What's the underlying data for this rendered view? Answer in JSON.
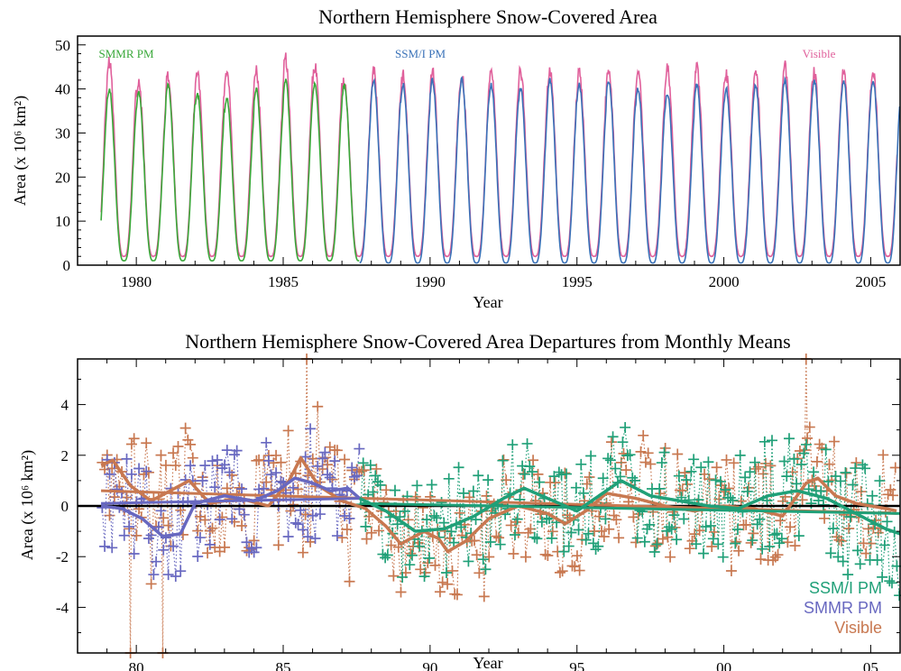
{
  "chart_data": [
    {
      "type": "line",
      "title": "Northern Hemisphere Snow-Covered Area",
      "xlabel": "Year",
      "ylabel": "Area (x 10⁶ km²)",
      "xlim": [
        1978,
        2006
      ],
      "ylim": [
        0,
        52
      ],
      "x_ticks": [
        1980,
        1985,
        1990,
        1995,
        2000,
        2005
      ],
      "y_ticks": [
        0,
        10,
        20,
        30,
        40,
        50
      ],
      "grid": false,
      "legend_placement": "top, inline above series",
      "series": [
        {
          "name": "SMMR PM",
          "color": "#3aa83a",
          "start": 1978.8,
          "end": 1987.6,
          "annual_peak": [
            40,
            40,
            39,
            41,
            39,
            38,
            40,
            42,
            41,
            41
          ],
          "summer_min": 1
        },
        {
          "name": "SSM/I PM",
          "color": "#3a72b8",
          "start": 1987.6,
          "end": 2006.0,
          "annual_peak": [
            41,
            42,
            41,
            42,
            42,
            41,
            40,
            42,
            41,
            42,
            40,
            39,
            41,
            40,
            41,
            42,
            42,
            42,
            42
          ],
          "summer_min": 0.5
        },
        {
          "name": "Visible",
          "color": "#e0609b",
          "start": 1978.8,
          "end": 2005.9,
          "annual_peak": [
            45,
            46,
            41,
            43,
            44,
            44,
            44,
            47,
            45,
            42,
            44,
            43,
            44,
            43,
            44,
            44,
            44,
            44,
            44,
            44,
            45,
            45,
            43,
            44,
            45,
            44,
            44,
            44
          ],
          "summer_min": 2
        }
      ]
    },
    {
      "type": "line",
      "title": "Northern Hemisphere Snow-Covered Area Departures from Monthly Means",
      "xlabel": "Year",
      "ylabel": "Area (x 10⁶ km²)",
      "xlim": [
        1978,
        2006
      ],
      "ylim": [
        -5.8,
        5.8
      ],
      "x_ticks": [
        1980,
        1985,
        1990,
        1995,
        2000,
        2005
      ],
      "x_tick_labels": [
        "80",
        "85",
        "90",
        "95",
        "00",
        "05"
      ],
      "y_ticks": [
        -4,
        -2,
        0,
        2,
        4
      ],
      "grid": false,
      "zero_line": true,
      "legend_placement": "bottom-right",
      "series": [
        {
          "name": "SSM/I PM",
          "color": "#20a078",
          "start": 1987.6,
          "end": 2006.0,
          "smooth_keypoints": [
            [
              1987.6,
              0.3
            ],
            [
              1988.5,
              -0.2
            ],
            [
              1989.5,
              -1.0
            ],
            [
              1990.5,
              -0.9
            ],
            [
              1991.5,
              -0.4
            ],
            [
              1992.5,
              0.3
            ],
            [
              1993.2,
              0.7
            ],
            [
              1994.0,
              0.3
            ],
            [
              1995.0,
              -0.2
            ],
            [
              1996.0,
              0.6
            ],
            [
              1996.5,
              1.0
            ],
            [
              1997.5,
              0.4
            ],
            [
              1998.5,
              0.2
            ],
            [
              1999.5,
              0.0
            ],
            [
              2000.5,
              -0.1
            ],
            [
              2001.5,
              0.4
            ],
            [
              2002.5,
              0.6
            ],
            [
              2003.5,
              0.3
            ],
            [
              2004.5,
              -0.3
            ],
            [
              2005.5,
              -0.9
            ],
            [
              2006.0,
              -1.1
            ]
          ],
          "trend": [
            [
              1987.6,
              0.1
            ],
            [
              2006.0,
              -0.3
            ]
          ]
        },
        {
          "name": "SMMR PM",
          "color": "#6868c0",
          "start": 1978.8,
          "end": 1987.6,
          "smooth_keypoints": [
            [
              1978.8,
              0.0
            ],
            [
              1979.5,
              -0.1
            ],
            [
              1980.2,
              -0.5
            ],
            [
              1980.9,
              -1.2
            ],
            [
              1981.5,
              -1.1
            ],
            [
              1982.0,
              0.1
            ],
            [
              1983.0,
              0.4
            ],
            [
              1984.0,
              0.2
            ],
            [
              1984.8,
              0.6
            ],
            [
              1985.4,
              1.1
            ],
            [
              1986.0,
              0.9
            ],
            [
              1986.6,
              0.6
            ],
            [
              1987.2,
              0.7
            ],
            [
              1987.6,
              0.3
            ]
          ],
          "trend": [
            [
              1978.8,
              0.1
            ],
            [
              1987.6,
              0.3
            ]
          ]
        },
        {
          "name": "Visible",
          "color": "#c87850",
          "start": 1978.8,
          "end": 2005.9,
          "smooth_keypoints": [
            [
              1978.8,
              1.6
            ],
            [
              1979.2,
              1.8
            ],
            [
              1979.8,
              0.8
            ],
            [
              1980.5,
              0.2
            ],
            [
              1981.0,
              0.5
            ],
            [
              1981.8,
              1.0
            ],
            [
              1982.5,
              0.1
            ],
            [
              1983.5,
              0.3
            ],
            [
              1984.5,
              0.0
            ],
            [
              1985.2,
              1.0
            ],
            [
              1985.6,
              1.9
            ],
            [
              1986.2,
              0.8
            ],
            [
              1987.0,
              0.2
            ],
            [
              1987.8,
              -0.1
            ],
            [
              1988.5,
              -0.8
            ],
            [
              1989.0,
              -1.5
            ],
            [
              1989.8,
              -1.0
            ],
            [
              1990.3,
              -1.3
            ],
            [
              1990.6,
              -1.8
            ],
            [
              1991.2,
              -1.4
            ],
            [
              1992.0,
              -0.5
            ],
            [
              1993.0,
              0.0
            ],
            [
              1994.0,
              -0.3
            ],
            [
              1994.6,
              -0.7
            ],
            [
              1995.3,
              -0.2
            ],
            [
              1996.0,
              0.5
            ],
            [
              1997.0,
              0.3
            ],
            [
              1998.0,
              0.0
            ],
            [
              1999.0,
              -0.2
            ],
            [
              2000.0,
              0.0
            ],
            [
              2001.0,
              -0.1
            ],
            [
              2002.0,
              -0.4
            ],
            [
              2002.8,
              0.9
            ],
            [
              2003.2,
              1.1
            ],
            [
              2003.8,
              0.4
            ],
            [
              2004.5,
              0.1
            ],
            [
              2005.5,
              -0.1
            ],
            [
              2005.9,
              -0.2
            ]
          ],
          "trend": [
            [
              1978.8,
              0.6
            ],
            [
              2005.9,
              -0.3
            ]
          ],
          "outliers": [
            [
              1979.8,
              -5.8
            ],
            [
              1980.9,
              -5.8
            ],
            [
              1985.8,
              5.8
            ],
            [
              2002.8,
              5.8
            ]
          ]
        }
      ]
    }
  ]
}
